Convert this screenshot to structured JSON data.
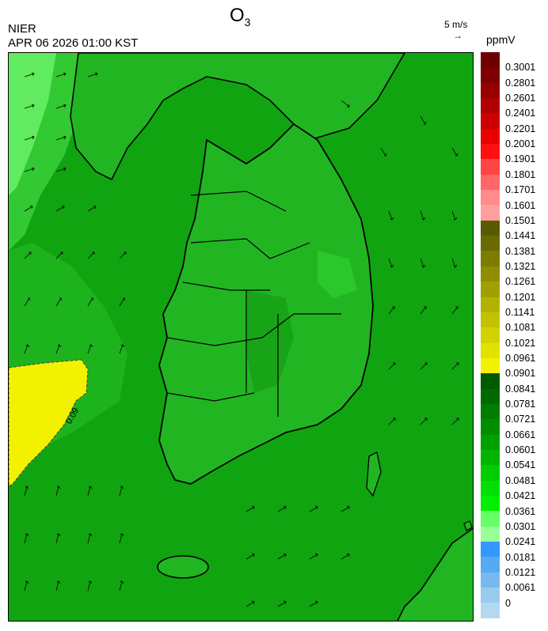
{
  "title": {
    "main": "O",
    "sub": "3"
  },
  "source": {
    "agency": "NIER",
    "datetime": "APR 06 2026 01:00 KST"
  },
  "wind_scale": {
    "label": "5 m/s",
    "arrow": "→"
  },
  "unit": "ppmV",
  "contour_label": "0.09",
  "colorbar": {
    "labels": [
      "0.3001",
      "0.2801",
      "0.2601",
      "0.2401",
      "0.2201",
      "0.2001",
      "0.1901",
      "0.1801",
      "0.1701",
      "0.1601",
      "0.1501",
      "0.1441",
      "0.1381",
      "0.1321",
      "0.1261",
      "0.1201",
      "0.1141",
      "0.1081",
      "0.1021",
      "0.0961",
      "0.0901",
      "0.0841",
      "0.0781",
      "0.0721",
      "0.0661",
      "0.0601",
      "0.0541",
      "0.0481",
      "0.0421",
      "0.0361",
      "0.0301",
      "0.0241",
      "0.0181",
      "0.0121",
      "0.0061",
      "0"
    ],
    "colors": [
      "#6e0000",
      "#7f0000",
      "#960000",
      "#b00000",
      "#cc0000",
      "#e80000",
      "#ff1010",
      "#ff4444",
      "#ff6666",
      "#ff8b8b",
      "#ff9f9f",
      "#5a5a00",
      "#6a6a00",
      "#7c7c00",
      "#8e8e00",
      "#a0a000",
      "#b2b200",
      "#c2c200",
      "#d2d200",
      "#e2e200",
      "#f2f200",
      "#005a00",
      "#006a00",
      "#007c00",
      "#008e00",
      "#00a000",
      "#00b400",
      "#00cc00",
      "#00e000",
      "#00f000",
      "#66ff66",
      "#99ff99",
      "#3399ff",
      "#55aaf2",
      "#77b9ee",
      "#99cbee",
      "#b3d9f0"
    ]
  },
  "colors": {
    "sea_main": "#11a411",
    "sea_light": "#33c933",
    "land": "#22b522",
    "high_zone": "#f2f200",
    "low_zone": "#66ee66"
  }
}
